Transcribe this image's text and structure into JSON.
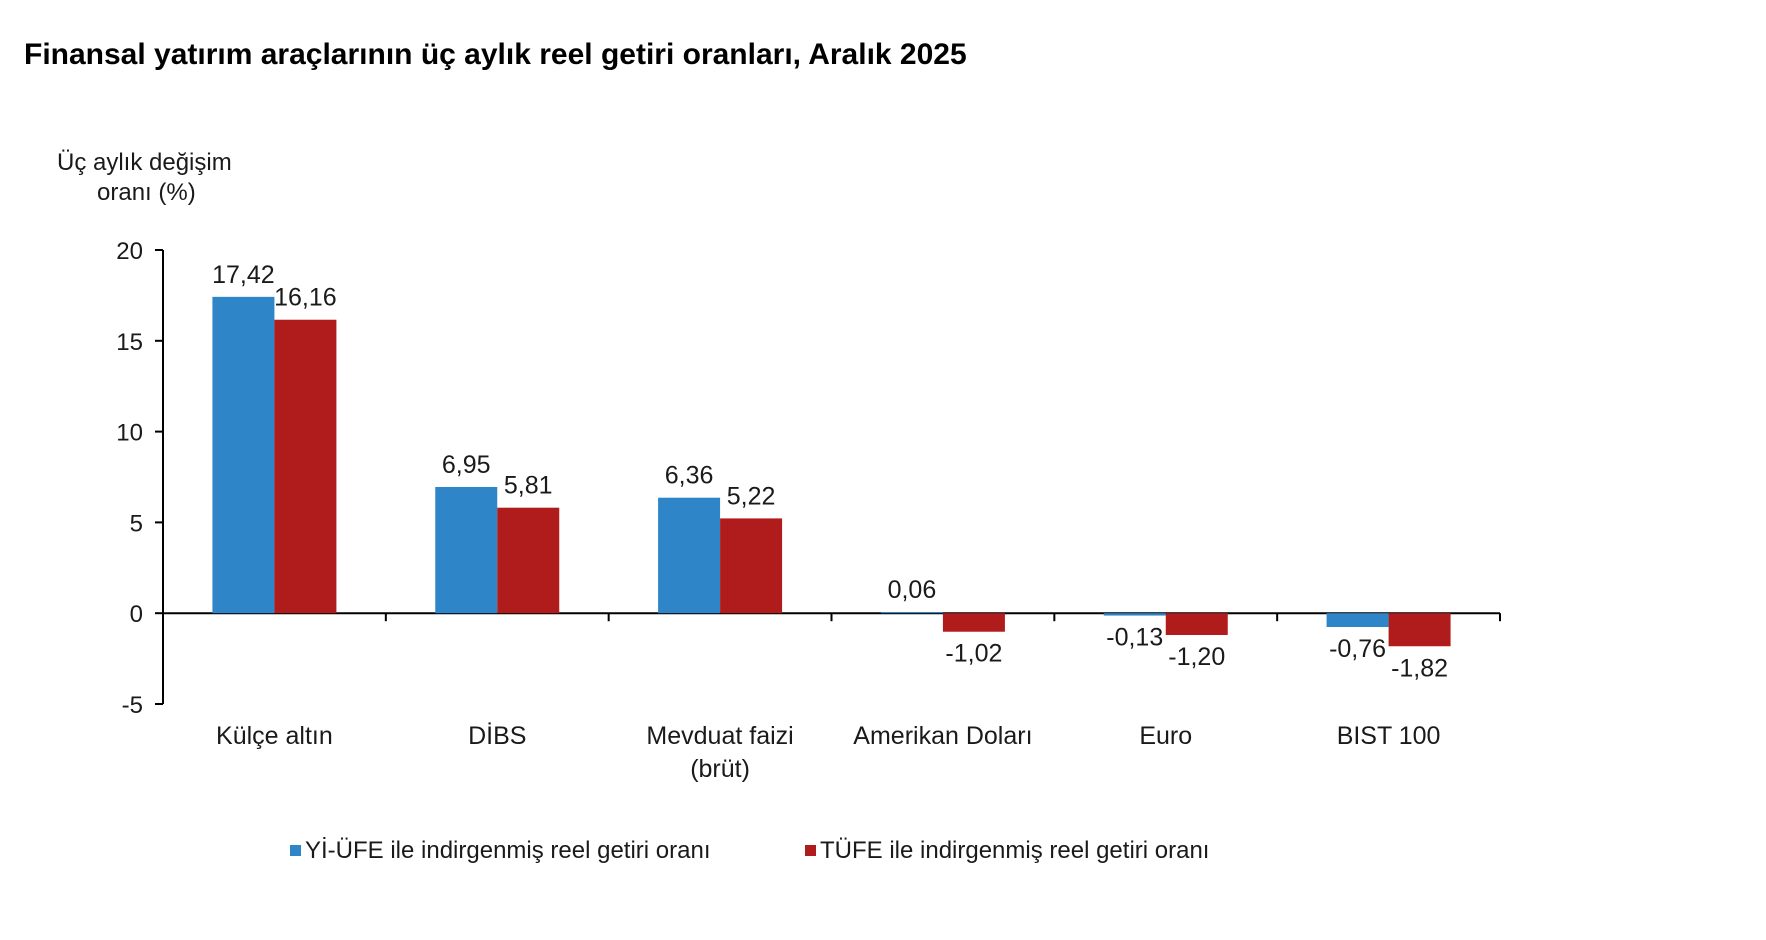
{
  "chart_data": {
    "type": "bar",
    "title": "Finansal yatırım araçlarının üç aylık reel getiri oranları, Aralık 2025",
    "ylabel_lines": [
      "Üç aylık değişim",
      "oranı (%)"
    ],
    "xlabel": "",
    "ylim": [
      -5,
      20
    ],
    "yticks": [
      {
        "value": 20,
        "label": "20"
      },
      {
        "value": 15,
        "label": "15"
      },
      {
        "value": 10,
        "label": "10"
      },
      {
        "value": 5,
        "label": "5"
      },
      {
        "value": 0,
        "label": "0"
      },
      {
        "value": -5,
        "label": "-5"
      }
    ],
    "grid": false,
    "legend_position": "bottom",
    "categories": [
      [
        "Külçe altın"
      ],
      [
        "DİBS"
      ],
      [
        "Mevduat faizi",
        "(brüt)"
      ],
      [
        "Amerikan Doları"
      ],
      [
        "Euro"
      ],
      [
        "BIST 100"
      ]
    ],
    "series": [
      {
        "name": "Yİ-ÜFE ile indirgenmiş reel getiri oranı",
        "color": "#2e86c9",
        "values": [
          17.42,
          6.95,
          6.36,
          0.06,
          -0.13,
          -0.76
        ],
        "labels": [
          "17,42",
          "6,95",
          "6,36",
          "0,06",
          "-0,13",
          "-0,76"
        ]
      },
      {
        "name": "TÜFE ile indirgenmiş reel getiri oranı",
        "color": "#b01c1c",
        "values": [
          16.16,
          5.81,
          5.22,
          -1.02,
          -1.2,
          -1.82
        ],
        "labels": [
          "16,16",
          "5,81",
          "5,22",
          "-1,02",
          "-1,20",
          "-1,82"
        ]
      }
    ]
  }
}
